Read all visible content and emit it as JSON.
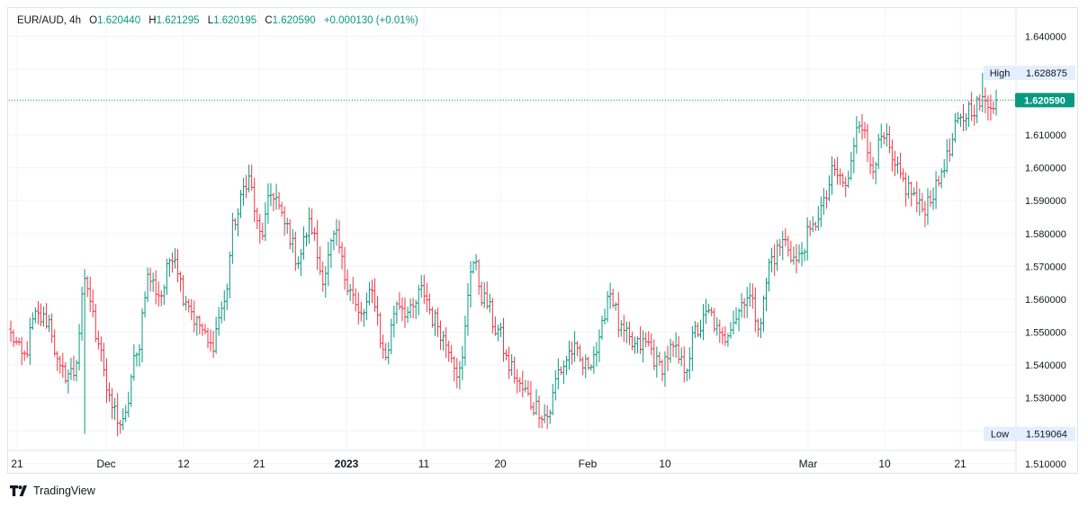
{
  "chart_data": {
    "type": "candlestick",
    "symbol": "EUR/AUD",
    "interval": "4h",
    "ohlc_labels": {
      "open": "O",
      "high": "H",
      "low": "L",
      "close": "C"
    },
    "last": {
      "open": "1.620440",
      "high": "1.621295",
      "low": "1.620195",
      "close": "1.620590",
      "change": "+0.000130 (+0.01%)"
    },
    "ylim": [
      1.507,
      1.642
    ],
    "yticks": [
      1.51,
      1.52,
      1.53,
      1.54,
      1.55,
      1.56,
      1.57,
      1.58,
      1.59,
      1.6,
      1.61,
      1.62,
      1.63,
      1.64
    ],
    "ytick_labels": [
      "1.510000",
      "1.520000",
      "1.530000",
      "1.540000",
      "1.550000",
      "1.560000",
      "1.570000",
      "1.580000",
      "1.590000",
      "1.600000",
      "1.610000",
      "1.620000",
      "1.630000",
      "1.640000"
    ],
    "xticks": [
      {
        "label": "21",
        "bold": false
      },
      {
        "label": "Dec",
        "bold": false
      },
      {
        "label": "12",
        "bold": false
      },
      {
        "label": "21",
        "bold": false
      },
      {
        "label": "2023",
        "bold": true
      },
      {
        "label": "11",
        "bold": false
      },
      {
        "label": "20",
        "bold": false
      },
      {
        "label": "Feb",
        "bold": false
      },
      {
        "label": "10",
        "bold": false
      },
      {
        "label": "Mar",
        "bold": false
      },
      {
        "label": "10",
        "bold": false
      },
      {
        "label": "21",
        "bold": false
      }
    ],
    "anchors": [
      [
        1.549,
        1.5422,
        1.5545,
        1.5535,
        1.5375
      ],
      [
        1.5375,
        1.5645,
        1.5485,
        1.5275,
        1.5215
      ],
      [
        1.5415,
        1.5665,
        1.5615,
        1.5745,
        1.5605
      ],
      [
        1.5525,
        1.5455,
        1.5575,
        1.5845,
        1.597
      ],
      [
        1.5795,
        1.5925,
        1.5825,
        1.5725,
        1.5825
      ],
      [
        1.5675,
        1.5785,
        1.5655,
        1.5545,
        1.5615
      ],
      [
        1.5425,
        1.5595,
        1.5555,
        1.5625,
        1.5535
      ],
      [
        1.5465,
        1.5375,
        1.5715,
        1.5595,
        1.5505
      ],
      [
        1.5395,
        1.5325,
        1.5275,
        1.5245,
        1.5385
      ],
      [
        1.5445,
        1.5395,
        1.5445,
        1.5625,
        1.5495
      ],
      [
        1.5455,
        1.5465,
        1.5395,
        1.5445,
        1.5395
      ],
      [
        1.5505,
        1.5555,
        1.5475,
        1.5545,
        1.5615
      ],
      [
        1.5535,
        1.5725,
        1.5775,
        1.5715,
        1.5795
      ],
      [
        1.5875,
        1.5985,
        1.5945,
        1.6155,
        1.6015
      ],
      [
        1.6085,
        1.5985,
        1.5935,
        1.5875,
        1.5925
      ],
      [
        1.6025,
        1.6135,
        1.6185,
        1.6195,
        1.6206
      ]
    ],
    "swing_high": 1.628875,
    "swing_low": 1.519064,
    "high_label": "High",
    "high_value": "1.628875",
    "low_label": "Low",
    "low_value": "1.519064",
    "last_price": 1.62059,
    "last_price_label": "1.620590",
    "colors": {
      "up": "#089981",
      "down": "#f23645",
      "grid": "#f0f3fa",
      "axis_text": "#131722",
      "badge_bg": "#e3effd",
      "price_badge": "#089981"
    }
  },
  "footer": {
    "brand": "TradingView"
  }
}
